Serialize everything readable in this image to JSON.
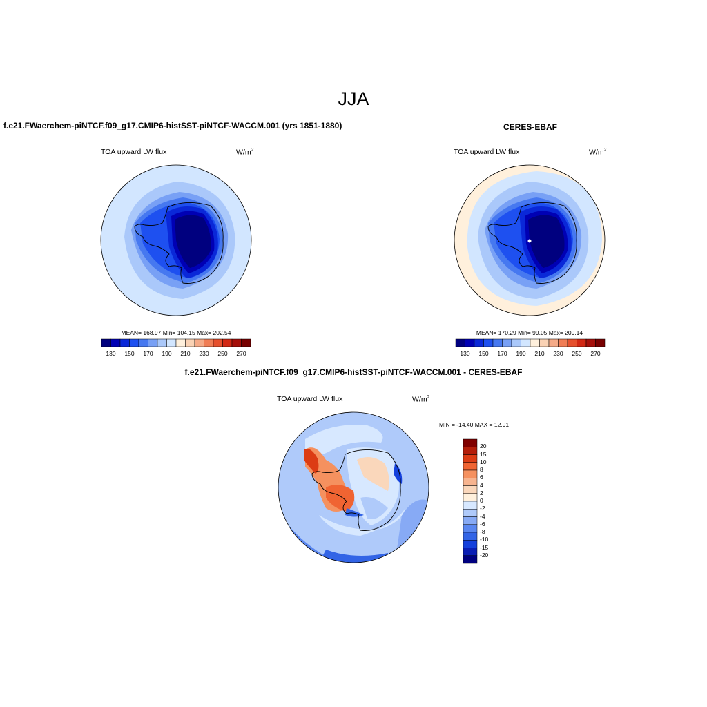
{
  "figure": {
    "season": "JJA",
    "panels": [
      {
        "title": "f.e21.FWaerchem-piNTCF.f09_g17.CMIP6-histSST-piNTCF-WACCM.001 (yrs 1851-1880)",
        "variable": "TOA upward LW flux",
        "units_base": "W/m",
        "units_exp": "2",
        "stats": "MEAN= 168.97  Min= 104.15  Max= 202.54"
      },
      {
        "title": "CERES-EBAF",
        "variable": "TOA upward LW flux",
        "units_base": "W/m",
        "units_exp": "2",
        "stats": "MEAN= 170.29  Min=  99.05  Max= 209.14"
      },
      {
        "title": "f.e21.FWaerchem-piNTCF.f09_g17.CMIP6-histSST-piNTCF-WACCM.001 - CERES-EBAF",
        "variable": "TOA upward LW flux",
        "units_base": "W/m",
        "units_exp": "2",
        "stats": "MIN = -14.40 MAX =  12.91"
      }
    ],
    "abs_colorbar": {
      "colors": [
        "#00007f",
        "#0000b4",
        "#0a28d8",
        "#1e50f0",
        "#4678f0",
        "#78a0f5",
        "#aac8fa",
        "#d2e6ff",
        "#fff0dc",
        "#fad2b4",
        "#f5aa87",
        "#f07d55",
        "#e6502d",
        "#d22814",
        "#a50f0a",
        "#780000"
      ],
      "ticks": [
        "130",
        "150",
        "170",
        "190",
        "210",
        "230",
        "250",
        "270"
      ]
    },
    "diff_colorbar": {
      "colors": [
        "#800000",
        "#b41e0a",
        "#dc3c14",
        "#f06432",
        "#f5915f",
        "#f7b48f",
        "#fad7bb",
        "#fff0dc",
        "#d7e8ff",
        "#afcafa",
        "#87aaf5",
        "#5a87f0",
        "#3264e6",
        "#1440dc",
        "#0a1eb4",
        "#000080"
      ],
      "labels": [
        "20",
        "15",
        "10",
        "8",
        "6",
        "4",
        "2",
        "0",
        "-2",
        "-4",
        "-6",
        "-8",
        "-10",
        "-15",
        "-20"
      ]
    }
  }
}
